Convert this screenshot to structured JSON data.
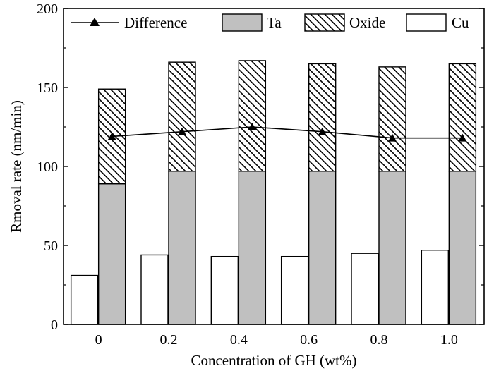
{
  "chart_data": {
    "type": "bar",
    "title": "",
    "xlabel": "Concentration of GH (wt%)",
    "ylabel": "Rmoval rate (nm/min)",
    "ylim": [
      0,
      200
    ],
    "yticks": [
      0,
      50,
      100,
      150,
      200
    ],
    "categories": [
      "0",
      "0.2",
      "0.4",
      "0.6",
      "0.8",
      "1.0"
    ],
    "legend_position": "top",
    "grid": false,
    "series": [
      {
        "name": "Cu",
        "kind": "bar",
        "fill": "#ffffff",
        "values": [
          31,
          44,
          43,
          43,
          45,
          47
        ]
      },
      {
        "name": "Ta",
        "kind": "stacked-bar",
        "fill": "#c0c0c0",
        "values": [
          89,
          97,
          97,
          97,
          97,
          97
        ]
      },
      {
        "name": "Oxide",
        "kind": "stacked-bar",
        "fill": "hatch",
        "values": [
          60,
          69,
          70,
          68,
          66,
          68
        ]
      },
      {
        "name": "Difference",
        "kind": "line",
        "marker": "triangle",
        "values": [
          119,
          122,
          125,
          122,
          118,
          118
        ]
      }
    ]
  }
}
